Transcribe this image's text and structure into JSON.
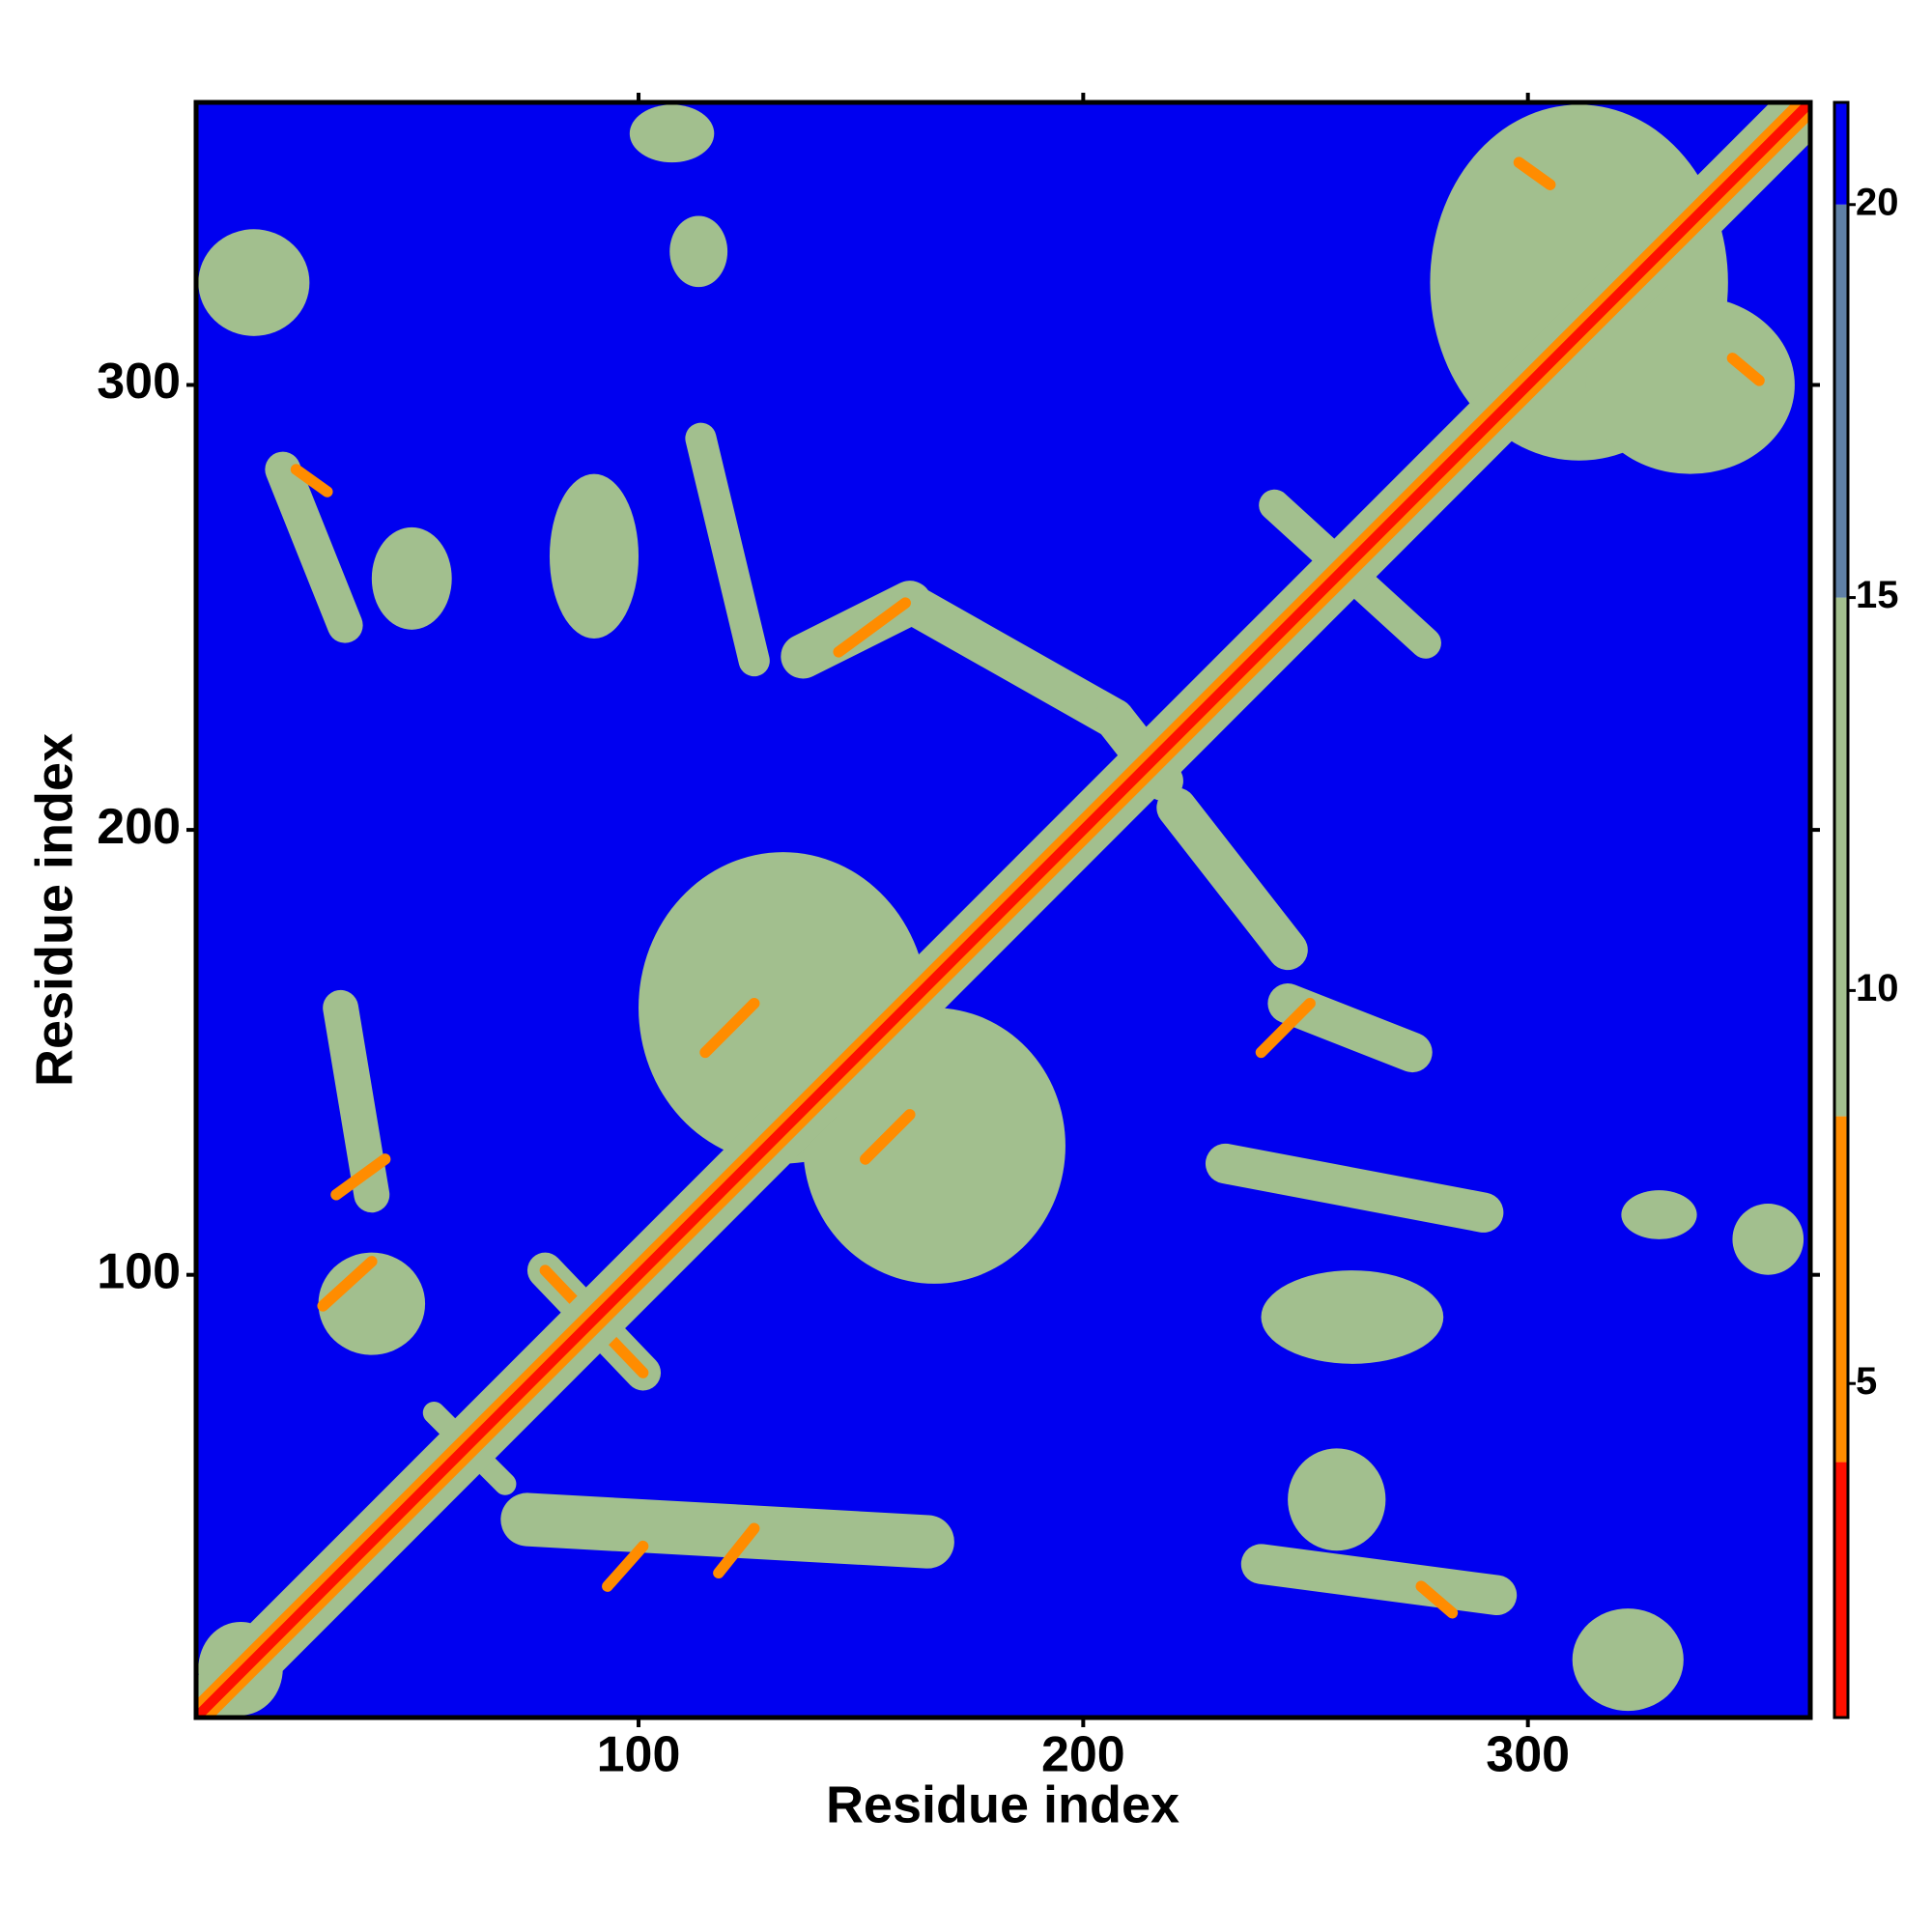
{
  "chart_data": {
    "type": "heatmap",
    "x_label": "Residue index",
    "y_label": "Residue index",
    "xlim": [
      0.5,
      363.5
    ],
    "ylim": [
      0.5,
      363.5
    ],
    "xticks": [
      100,
      200,
      300
    ],
    "yticks": [
      100,
      200,
      300
    ],
    "colorlim": [
      0.75,
      21.3
    ],
    "colorticks": [
      5,
      10,
      15,
      20
    ],
    "colorscale": [
      {
        "from": 0.75,
        "to": 4,
        "color": "#ff1000"
      },
      {
        "from": 4,
        "to": 8.4,
        "color": "#ff8c00"
      },
      {
        "from": 8.4,
        "to": 15,
        "color": "#a2bf8e"
      },
      {
        "from": 15,
        "to": 20,
        "color": "#5f80a6"
      },
      {
        "from": 20,
        "to": 21.3,
        "color": "#0000f0"
      }
    ],
    "background_value": 21,
    "diagonal": [
      {
        "value": 11,
        "width": 9
      },
      {
        "value": 6,
        "width": 4
      },
      {
        "value": 2,
        "width": 1.6
      }
    ],
    "features": [
      {
        "shape": "box",
        "x": [
          1,
          26
        ],
        "y": [
          311,
          335
        ],
        "value": 11
      },
      {
        "shape": "line",
        "x": [
          20,
          34
        ],
        "y": [
          281,
          246
        ],
        "value": 11,
        "width": 8
      },
      {
        "shape": "box",
        "x": [
          40,
          58
        ],
        "y": [
          245,
          268
        ],
        "value": 11
      },
      {
        "shape": "box",
        "x": [
          80,
          100
        ],
        "y": [
          243,
          280
        ],
        "value": 11
      },
      {
        "shape": "line",
        "x": [
          114,
          126
        ],
        "y": [
          288,
          238
        ],
        "value": 11,
        "width": 7
      },
      {
        "shape": "line",
        "x": [
          137,
          161
        ],
        "y": [
          239,
          251
        ],
        "value": 11,
        "width": 10
      },
      {
        "shape": "line",
        "x": [
          161,
          207
        ],
        "y": [
          251,
          225
        ],
        "value": 11,
        "width": 9
      },
      {
        "shape": "line",
        "x": [
          207,
          218
        ],
        "y": [
          225,
          211
        ],
        "value": 11,
        "width": 9
      },
      {
        "shape": "box",
        "x": [
          98,
          117
        ],
        "y": [
          350,
          363
        ],
        "value": 11
      },
      {
        "shape": "box",
        "x": [
          107,
          120
        ],
        "y": [
          322,
          338
        ],
        "value": 11
      },
      {
        "shape": "box",
        "x": [
          278,
          345
        ],
        "y": [
          283,
          363
        ],
        "value": 11
      },
      {
        "shape": "box",
        "x": [
          313,
          360
        ],
        "y": [
          280,
          320
        ],
        "value": 11
      },
      {
        "shape": "box",
        "x": [
          28,
          52
        ],
        "y": [
          82,
          105
        ],
        "value": 11
      },
      {
        "shape": "line",
        "x": [
          33,
          40
        ],
        "y": [
          160,
          118
        ],
        "value": 11,
        "width": 8
      },
      {
        "shape": "line",
        "x": [
          79,
          101
        ],
        "y": [
          101,
          78
        ],
        "value": 11,
        "width": 8
      },
      {
        "shape": "box",
        "x": [
          100,
          165
        ],
        "y": [
          125,
          195
        ],
        "value": 11
      },
      {
        "shape": "box",
        "x": [
          137,
          196
        ],
        "y": [
          98,
          160
        ],
        "value": 11
      },
      {
        "shape": "line",
        "x": [
          75,
          165
        ],
        "y": [
          45,
          40
        ],
        "value": 11,
        "width": 12
      },
      {
        "shape": "line",
        "x": [
          54,
          70
        ],
        "y": [
          69,
          53
        ],
        "value": 11,
        "width": 5
      },
      {
        "shape": "line",
        "x": [
          221,
          246
        ],
        "y": [
          205,
          173
        ],
        "value": 11,
        "width": 9
      },
      {
        "shape": "line",
        "x": [
          246,
          274
        ],
        "y": [
          161,
          150
        ],
        "value": 11,
        "width": 9
      },
      {
        "shape": "line",
        "x": [
          232,
          290
        ],
        "y": [
          125,
          114
        ],
        "value": 11,
        "width": 9
      },
      {
        "shape": "box",
        "x": [
          240,
          281
        ],
        "y": [
          80,
          101
        ],
        "value": 11
      },
      {
        "shape": "box",
        "x": [
          246,
          268
        ],
        "y": [
          38,
          61
        ],
        "value": 11
      },
      {
        "shape": "line",
        "x": [
          240,
          293
        ],
        "y": [
          35,
          28
        ],
        "value": 11,
        "width": 9
      },
      {
        "shape": "box",
        "x": [
          310,
          335
        ],
        "y": [
          2,
          25
        ],
        "value": 11
      },
      {
        "shape": "box",
        "x": [
          321,
          338
        ],
        "y": [
          108,
          119
        ],
        "value": 11
      },
      {
        "shape": "box",
        "x": [
          346,
          362
        ],
        "y": [
          100,
          116
        ],
        "value": 11
      },
      {
        "shape": "line",
        "x": [
          243,
          277
        ],
        "y": [
          273,
          242
        ],
        "value": 11,
        "width": 7
      },
      {
        "shape": "box",
        "x": [
          1,
          20
        ],
        "y": [
          1,
          22
        ],
        "value": 11
      },
      {
        "shape": "line",
        "x": [
          23,
          30
        ],
        "y": [
          281,
          276
        ],
        "value": 6,
        "width": 2.5
      },
      {
        "shape": "line",
        "x": [
          145,
          160
        ],
        "y": [
          240,
          251
        ],
        "value": 6,
        "width": 2.5
      },
      {
        "shape": "line",
        "x": [
          29,
          40
        ],
        "y": [
          93,
          103
        ],
        "value": 6,
        "width": 2.5
      },
      {
        "shape": "line",
        "x": [
          32,
          43
        ],
        "y": [
          118,
          126
        ],
        "value": 6,
        "width": 2.5
      },
      {
        "shape": "line",
        "x": [
          79,
          101
        ],
        "y": [
          101,
          78
        ],
        "value": 6,
        "width": 2.5
      },
      {
        "shape": "line",
        "x": [
          115,
          126
        ],
        "y": [
          150,
          161
        ],
        "value": 6,
        "width": 2.5
      },
      {
        "shape": "line",
        "x": [
          151,
          161
        ],
        "y": [
          126,
          136
        ],
        "value": 6,
        "width": 2.5
      },
      {
        "shape": "line",
        "x": [
          93,
          101
        ],
        "y": [
          30,
          39
        ],
        "value": 6,
        "width": 2.5
      },
      {
        "shape": "line",
        "x": [
          118,
          126
        ],
        "y": [
          33,
          43
        ],
        "value": 6,
        "width": 2.5
      },
      {
        "shape": "line",
        "x": [
          240,
          251
        ],
        "y": [
          150,
          161
        ],
        "value": 6,
        "width": 2.5
      },
      {
        "shape": "line",
        "x": [
          276,
          283
        ],
        "y": [
          30,
          24
        ],
        "value": 6,
        "width": 2.5
      },
      {
        "shape": "line",
        "x": [
          298,
          305
        ],
        "y": [
          350,
          345
        ],
        "value": 6,
        "width": 2.5
      },
      {
        "shape": "line",
        "x": [
          346,
          352
        ],
        "y": [
          306,
          301
        ],
        "value": 6,
        "width": 2.5
      }
    ]
  }
}
